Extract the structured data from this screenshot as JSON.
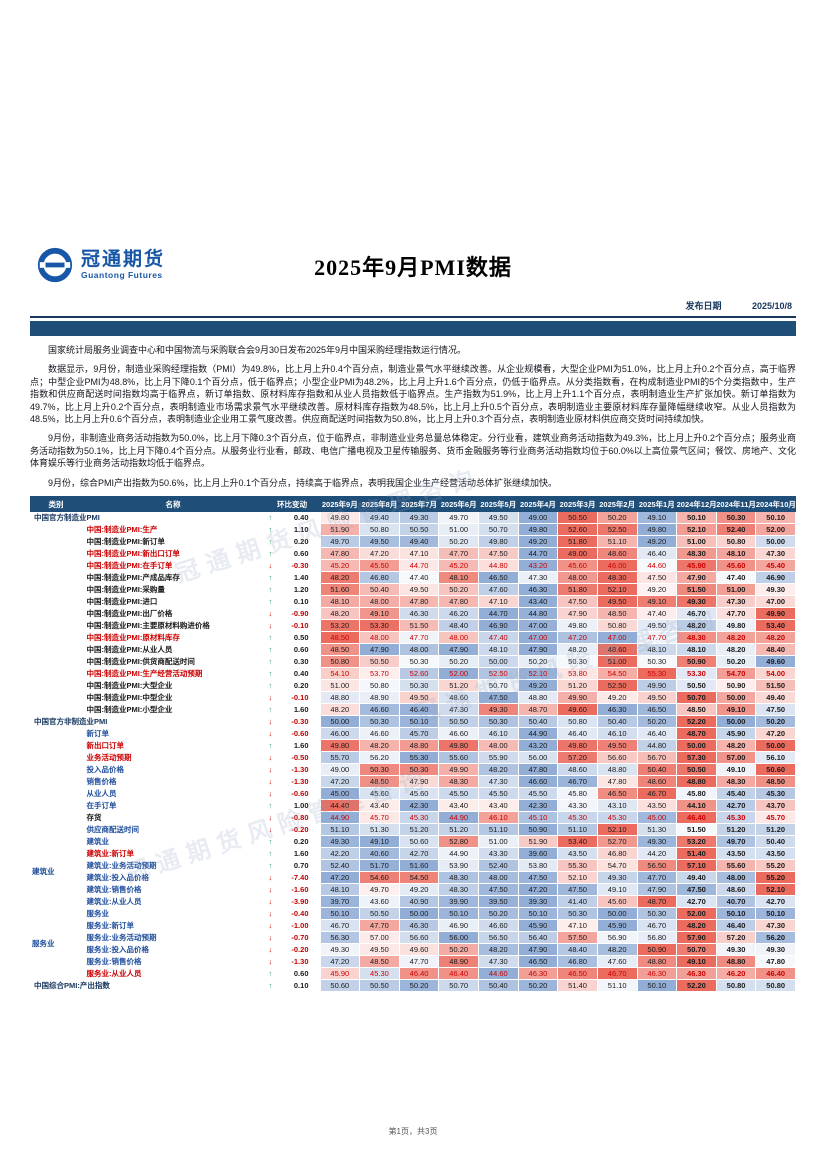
{
  "header": {
    "logo_cn": "冠通期货",
    "logo_en": "Guantong Futures",
    "title": "2025年9月PMI数据",
    "publish_label": "发布日期",
    "publish_date": "2025/10/8"
  },
  "paragraphs": [
    "国家统计局服务业调查中心和中国物流与采购联合会9月30日发布2025年9月中国采购经理指数运行情况。",
    "数据显示，9月份，制造业采购经理指数（PMI）为49.8%，比上月上升0.4个百分点，制造业景气水平继续改善。从企业规模看，大型企业PMI为51.0%，比上月上升0.2个百分点，高于临界点；中型企业PMI为48.8%，比上月下降0.1个百分点，低于临界点；小型企业PMI为48.2%，比上月上升1.6个百分点，仍低于临界点。从分类指数看，在构成制造业PMI的5个分类指数中，生产指数和供应商配送时间指数均高于临界点，新订单指数、原材料库存指数和从业人员指数低于临界点。生产指数为51.9%，比上月上升1.1个百分点，表明制造业生产扩张加快。新订单指数为49.7%，比上月上升0.2个百分点，表明制造业市场需求景气水平继续改善。原材料库存指数为48.5%，比上月上升0.5个百分点，表明制造业主要原材料库存量降幅继续收窄。从业人员指数为48.5%，比上月上升0.6个百分点，表明制造业企业用工景气度改善。供应商配送时间指数为50.8%，比上月上升0.3个百分点，表明制造业原材料供应商交货时间持续加快。",
    "9月份，非制造业商务活动指数为50.0%，比上月下降0.3个百分点，位于临界点，非制造业业务总量总体稳定。分行业看，建筑业商务活动指数为49.3%，比上月上升0.2个百分点；服务业商务活动指数为50.1%，比上月下降0.4个百分点。从服务业行业看，邮政、电信广播电视及卫星传输服务、货币金融服务等行业商务活动指数均位于60.0%以上高位景气区间；餐饮、房地产、文化体育娱乐等行业商务活动指数均低于临界点。",
    "9月份，综合PMI产出指数为50.6%，比上月上升0.1个百分点，持续高于临界点，表明我国企业生产经营活动总体扩张继续加快。"
  ],
  "watermark": "冠通期货风险管理咨询",
  "footer": {
    "page_text": "第1页，共3页"
  },
  "table": {
    "columns": [
      "类别",
      "名称",
      "环比变动",
      "2025年9月",
      "2025年8月",
      "2025年7月",
      "2025年6月",
      "2025年5月",
      "2025年4月",
      "2025年3月",
      "2025年2月",
      "2025年1月",
      "2024年12月",
      "2024年11月",
      "2024年10月"
    ],
    "rows": [
      {
        "name": "中国官方制造业PMI",
        "style": "section",
        "section": true,
        "change": 0.4,
        "values": [
          49.8,
          49.4,
          49.3,
          49.7,
          49.5,
          49.0,
          50.5,
          50.2,
          49.1,
          50.1,
          50.3,
          50.1
        ]
      },
      {
        "name": "中国:制造业PMI:生产",
        "style": "red",
        "change": 1.1,
        "values": [
          51.9,
          50.8,
          50.5,
          51.0,
          50.7,
          49.8,
          52.6,
          52.5,
          49.8,
          52.1,
          52.4,
          52.0
        ]
      },
      {
        "name": "中国:制造业PMI:新订单",
        "style": "black",
        "change": 0.2,
        "values": [
          49.7,
          49.5,
          49.4,
          50.2,
          49.8,
          49.2,
          51.8,
          51.1,
          49.2,
          51.0,
          50.8,
          50.0
        ]
      },
      {
        "name": "中国:制造业PMI:新出口订单",
        "style": "red",
        "change": 0.6,
        "values": [
          47.8,
          47.2,
          47.1,
          47.7,
          47.5,
          44.7,
          49.0,
          48.6,
          46.4,
          48.3,
          48.1,
          47.3
        ]
      },
      {
        "name": "中国:制造业PMI:在手订单",
        "style": "red",
        "red_values": true,
        "change": -0.3,
        "values": [
          45.2,
          45.5,
          44.7,
          45.2,
          44.8,
          43.2,
          45.6,
          46.0,
          44.6,
          45.9,
          45.6,
          45.4
        ]
      },
      {
        "name": "中国:制造业PMI:产成品库存",
        "style": "black",
        "change": 1.4,
        "values": [
          48.2,
          46.8,
          47.4,
          48.1,
          46.5,
          47.3,
          48.0,
          48.3,
          47.5,
          47.9,
          47.4,
          46.9
        ]
      },
      {
        "name": "中国:制造业PMI:采购量",
        "style": "black",
        "change": 1.2,
        "values": [
          51.6,
          50.4,
          49.5,
          50.2,
          47.6,
          46.3,
          51.8,
          52.1,
          49.2,
          51.5,
          51.0,
          49.3
        ]
      },
      {
        "name": "中国:制造业PMI:进口",
        "style": "black",
        "change": 0.1,
        "values": [
          48.1,
          48.0,
          47.8,
          47.8,
          47.1,
          43.4,
          47.5,
          49.5,
          49.1,
          49.3,
          47.3,
          47.0
        ]
      },
      {
        "name": "中国:制造业PMI:出厂价格",
        "style": "black",
        "change": -0.9,
        "values": [
          48.2,
          49.1,
          46.3,
          46.2,
          44.7,
          44.8,
          47.9,
          48.5,
          47.4,
          46.7,
          47.7,
          49.9
        ]
      },
      {
        "name": "中国:制造业PMI:主要原材料购进价格",
        "style": "black",
        "change": -0.1,
        "values": [
          53.2,
          53.3,
          51.5,
          48.4,
          46.9,
          47.0,
          49.8,
          50.8,
          49.5,
          48.2,
          49.8,
          53.4
        ]
      },
      {
        "name": "中国:制造业PMI:原材料库存",
        "style": "red",
        "red_values": true,
        "change": 0.5,
        "values": [
          48.5,
          48.0,
          47.7,
          48.0,
          47.4,
          47.0,
          47.2,
          47.0,
          47.7,
          48.3,
          48.2,
          48.2
        ]
      },
      {
        "name": "中国:制造业PMI:从业人员",
        "style": "black",
        "change": 0.6,
        "values": [
          48.5,
          47.9,
          48.0,
          47.9,
          48.1,
          47.9,
          48.2,
          48.6,
          48.1,
          48.1,
          48.2,
          48.4
        ]
      },
      {
        "name": "中国:制造业PMI:供货商配送时间",
        "style": "black",
        "change": 0.3,
        "values": [
          50.8,
          50.5,
          50.3,
          50.2,
          50.0,
          50.2,
          50.3,
          51.0,
          50.3,
          50.9,
          50.2,
          49.6
        ]
      },
      {
        "name": "中国:制造业PMI:生产经营活动预期",
        "style": "red",
        "red_values": true,
        "change": 0.4,
        "values": [
          54.1,
          53.7,
          52.6,
          52.0,
          52.5,
          52.1,
          53.8,
          54.5,
          55.3,
          53.3,
          54.7,
          54.0
        ]
      },
      {
        "name": "中国:制造业PMI:大型企业",
        "style": "black",
        "change": 0.2,
        "values": [
          51.0,
          50.8,
          50.3,
          51.2,
          50.7,
          49.2,
          51.2,
          52.5,
          49.9,
          50.5,
          50.9,
          51.5
        ]
      },
      {
        "name": "中国:制造业PMI:中型企业",
        "style": "black",
        "change": -0.1,
        "values": [
          48.8,
          48.9,
          49.5,
          48.6,
          47.5,
          48.8,
          49.9,
          49.2,
          49.5,
          50.7,
          50.0,
          49.4
        ]
      },
      {
        "name": "中国:制造业PMI:小型企业",
        "style": "black",
        "change": 1.6,
        "values": [
          48.2,
          46.6,
          46.4,
          47.3,
          49.3,
          48.7,
          49.6,
          46.3,
          46.5,
          48.5,
          49.1,
          47.5
        ]
      },
      {
        "name": "中国官方非制造业PMI",
        "style": "section",
        "section": true,
        "change": -0.3,
        "values": [
          50.0,
          50.3,
          50.1,
          50.5,
          50.3,
          50.4,
          50.8,
          50.4,
          50.2,
          52.2,
          50.0,
          50.2
        ]
      },
      {
        "name": "新订单",
        "style": "blue",
        "change": -0.6,
        "values": [
          46.0,
          46.6,
          45.7,
          46.6,
          46.1,
          44.9,
          46.4,
          46.1,
          46.4,
          48.7,
          45.9,
          47.2
        ]
      },
      {
        "name": "新出口订单",
        "style": "red",
        "change": 1.6,
        "values": [
          49.8,
          48.2,
          48.8,
          49.8,
          48.0,
          43.2,
          49.8,
          49.5,
          44.8,
          50.0,
          48.2,
          50.0
        ]
      },
      {
        "name": "业务活动预期",
        "style": "red",
        "change": -0.5,
        "values": [
          55.7,
          56.2,
          55.3,
          55.6,
          55.9,
          56.0,
          57.2,
          56.6,
          56.7,
          57.3,
          57.0,
          56.1
        ]
      },
      {
        "name": "投入品价格",
        "style": "blue",
        "change": -1.3,
        "values": [
          49.0,
          50.3,
          50.3,
          49.9,
          48.2,
          47.8,
          48.6,
          48.8,
          50.4,
          50.5,
          49.1,
          50.6
        ]
      },
      {
        "name": "销售价格",
        "style": "blue",
        "change": -1.3,
        "values": [
          47.2,
          48.5,
          47.9,
          48.3,
          47.3,
          46.6,
          46.7,
          47.8,
          48.6,
          48.8,
          48.3,
          48.5
        ]
      },
      {
        "name": "从业人员",
        "style": "blue",
        "change": -0.6,
        "values": [
          45.0,
          45.6,
          45.6,
          45.5,
          45.5,
          45.5,
          45.8,
          46.5,
          46.7,
          45.8,
          45.4,
          45.3
        ]
      },
      {
        "name": "在手订单",
        "style": "blue",
        "change": 1.0,
        "values": [
          44.4,
          43.4,
          42.3,
          43.4,
          43.4,
          42.3,
          43.3,
          43.1,
          43.5,
          44.1,
          42.7,
          43.7
        ]
      },
      {
        "name": "存货",
        "style": "black",
        "red_values": true,
        "change": -0.8,
        "values": [
          44.9,
          45.7,
          45.3,
          44.9,
          46.1,
          45.1,
          45.3,
          45.3,
          45.0,
          46.4,
          45.3,
          45.7
        ]
      },
      {
        "name": "供应商配送时间",
        "style": "blue",
        "change": -0.2,
        "values": [
          51.1,
          51.3,
          51.2,
          51.2,
          51.1,
          50.9,
          51.1,
          52.1,
          51.3,
          51.5,
          51.2,
          51.2
        ]
      },
      {
        "name": "建筑业",
        "style": "blue",
        "cat": "建筑业",
        "cat_span": 6,
        "change": 0.2,
        "values": [
          49.3,
          49.1,
          50.6,
          52.8,
          51.0,
          51.9,
          53.4,
          52.7,
          49.3,
          53.2,
          49.7,
          50.4
        ]
      },
      {
        "name": "建筑业:新订单",
        "style": "red",
        "in_cat": true,
        "change": 1.6,
        "values": [
          42.2,
          40.6,
          42.7,
          44.9,
          43.3,
          39.6,
          43.5,
          46.8,
          44.2,
          51.4,
          43.5,
          43.5
        ]
      },
      {
        "name": "建筑业:业务活动预期",
        "style": "blue",
        "in_cat": true,
        "change": 0.7,
        "values": [
          52.4,
          51.7,
          51.6,
          53.9,
          52.4,
          53.8,
          55.3,
          54.7,
          56.5,
          57.1,
          55.6,
          55.2
        ]
      },
      {
        "name": "建筑业:投入品价格",
        "style": "blue",
        "in_cat": true,
        "change": -7.4,
        "values": [
          47.2,
          54.6,
          54.5,
          48.3,
          48.0,
          47.5,
          52.1,
          49.3,
          47.7,
          49.4,
          48.0,
          55.2
        ]
      },
      {
        "name": "建筑业:销售价格",
        "style": "blue",
        "in_cat": true,
        "change": -1.6,
        "values": [
          48.1,
          49.7,
          49.2,
          48.3,
          47.5,
          47.2,
          47.5,
          49.1,
          47.9,
          47.5,
          48.6,
          52.1
        ]
      },
      {
        "name": "建筑业:从业人员",
        "style": "blue",
        "in_cat": true,
        "change": -3.9,
        "values": [
          39.7,
          43.6,
          40.9,
          39.9,
          39.5,
          39.3,
          41.4,
          45.6,
          48.7,
          42.7,
          40.7,
          42.7
        ]
      },
      {
        "name": "服务业",
        "style": "blue",
        "cat": "服务业",
        "cat_span": 6,
        "change": -0.4,
        "values": [
          50.1,
          50.5,
          50.0,
          50.1,
          50.2,
          50.1,
          50.3,
          50.0,
          50.3,
          52.0,
          50.1,
          50.1
        ]
      },
      {
        "name": "服务业:新订单",
        "style": "blue",
        "in_cat": true,
        "change": -1.0,
        "values": [
          46.7,
          47.7,
          46.3,
          46.9,
          46.6,
          45.9,
          47.1,
          45.9,
          46.7,
          48.2,
          46.4,
          47.3
        ]
      },
      {
        "name": "服务业:业务活动预期",
        "style": "blue",
        "in_cat": true,
        "change": -0.7,
        "values": [
          56.3,
          57.0,
          56.6,
          56.0,
          56.5,
          56.4,
          57.5,
          56.9,
          56.8,
          57.9,
          57.2,
          56.2
        ]
      },
      {
        "name": "服务业:投入品价格",
        "style": "blue",
        "in_cat": true,
        "change": -0.2,
        "values": [
          49.3,
          49.5,
          49.6,
          50.2,
          48.2,
          47.9,
          48.4,
          48.2,
          50.9,
          50.7,
          49.3,
          49.3
        ]
      },
      {
        "name": "服务业:销售价格",
        "style": "blue",
        "in_cat": true,
        "change": -1.3,
        "values": [
          47.2,
          48.5,
          47.7,
          48.9,
          47.3,
          46.5,
          46.8,
          47.6,
          48.8,
          49.1,
          48.8,
          47.8
        ]
      },
      {
        "name": "服务业:从业人员",
        "style": "red",
        "red_values": true,
        "in_cat": true,
        "change": 0.6,
        "values": [
          45.9,
          45.3,
          46.4,
          46.4,
          44.6,
          46.3,
          46.5,
          46.7,
          46.3,
          46.3,
          46.2,
          46.4
        ]
      },
      {
        "name": "中国综合PMI:产出指数",
        "style": "section",
        "section": true,
        "change": 0.1,
        "values": [
          50.6,
          50.5,
          50.2,
          50.7,
          50.4,
          50.2,
          51.4,
          51.1,
          50.1,
          52.2,
          50.8,
          50.8
        ]
      }
    ]
  }
}
